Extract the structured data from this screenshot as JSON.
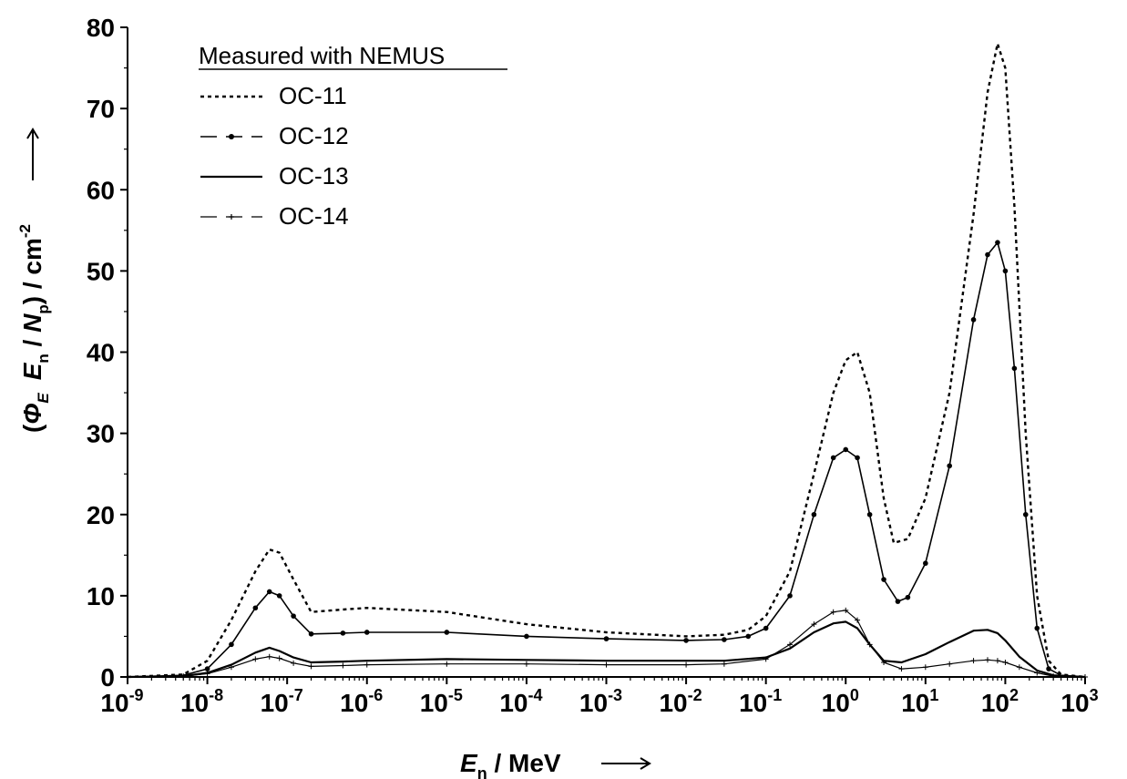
{
  "chart_data": {
    "type": "line",
    "x_scale": "log",
    "xlim": [
      1e-09,
      1000
    ],
    "ylim": [
      0,
      80
    ],
    "grid": false,
    "legend_position": "top-left",
    "legend_title": "Measured with NEMUS",
    "x_ticks": [
      {
        "base": "10",
        "exp": "-9",
        "value": 1e-09
      },
      {
        "base": "10",
        "exp": "-8",
        "value": 1e-08
      },
      {
        "base": "10",
        "exp": "-7",
        "value": 1e-07
      },
      {
        "base": "10",
        "exp": "-6",
        "value": 1e-06
      },
      {
        "base": "10",
        "exp": "-5",
        "value": 1e-05
      },
      {
        "base": "10",
        "exp": "-4",
        "value": 0.0001
      },
      {
        "base": "10",
        "exp": "-3",
        "value": 0.001
      },
      {
        "base": "10",
        "exp": "-2",
        "value": 0.01
      },
      {
        "base": "10",
        "exp": "-1",
        "value": 0.1
      },
      {
        "base": "10",
        "exp": "0",
        "value": 1
      },
      {
        "base": "10",
        "exp": "1",
        "value": 10
      },
      {
        "base": "10",
        "exp": "2",
        "value": 100
      },
      {
        "base": "10",
        "exp": "3",
        "value": 1000
      }
    ],
    "y_ticks": [
      0,
      10,
      20,
      30,
      40,
      50,
      60,
      70,
      80
    ],
    "xlabel": {
      "sym": "E",
      "sub": "n",
      "rest": " / MeV"
    },
    "ylabel": {
      "open": "(",
      "phi": "Φ",
      "phi_sub": "E",
      "e": "E",
      "e_sub": "n",
      "mid": " / ",
      "n": "N",
      "n_sub": "p",
      "close": ")  / cm",
      "sup": "-2"
    },
    "series": [
      {
        "name": "OC-11",
        "style": "dotted",
        "color": "#000000",
        "x": [
          1e-09,
          5e-09,
          1e-08,
          2e-08,
          4e-08,
          6e-08,
          8e-08,
          1.2e-07,
          2e-07,
          5e-07,
          1e-06,
          1e-05,
          0.0001,
          0.001,
          0.01,
          0.03,
          0.06,
          0.1,
          0.2,
          0.4,
          0.7,
          1.0,
          1.4,
          2.0,
          3.0,
          4.0,
          6.0,
          10,
          20,
          40,
          60,
          80,
          100,
          130,
          180,
          250,
          350,
          500,
          1000
        ],
        "y": [
          0,
          0.3,
          2,
          7,
          13,
          15.7,
          15.3,
          12,
          8,
          8.3,
          8.5,
          8,
          6.5,
          5.5,
          5,
          5.2,
          5.8,
          7.5,
          13,
          25,
          35,
          39,
          40,
          35,
          22,
          16.5,
          17,
          22,
          35,
          57,
          72,
          78,
          75,
          58,
          30,
          10,
          2,
          0.3,
          0
        ]
      },
      {
        "name": "OC-12",
        "style": "dash-dot",
        "color": "#000000",
        "x": [
          1e-09,
          5e-09,
          1e-08,
          2e-08,
          4e-08,
          6e-08,
          8e-08,
          1.2e-07,
          2e-07,
          5e-07,
          1e-06,
          1e-05,
          0.0001,
          0.001,
          0.01,
          0.03,
          0.06,
          0.1,
          0.2,
          0.4,
          0.7,
          1.0,
          1.4,
          2.0,
          3.0,
          4.5,
          6.0,
          10,
          20,
          40,
          60,
          80,
          100,
          130,
          180,
          250,
          350,
          500,
          1000
        ],
        "y": [
          0,
          0.2,
          1,
          4,
          8.5,
          10.5,
          10,
          7.5,
          5.3,
          5.4,
          5.5,
          5.5,
          5,
          4.7,
          4.5,
          4.6,
          5,
          6,
          10,
          20,
          27,
          28,
          27,
          20,
          12,
          9.3,
          9.8,
          14,
          26,
          44,
          52,
          53.5,
          50,
          38,
          20,
          6,
          1,
          0.2,
          0
        ]
      },
      {
        "name": "OC-13",
        "style": "solid",
        "color": "#000000",
        "x": [
          1e-09,
          5e-09,
          1e-08,
          2e-08,
          4e-08,
          6e-08,
          8e-08,
          1.2e-07,
          2e-07,
          5e-07,
          1e-06,
          1e-05,
          0.0001,
          0.001,
          0.01,
          0.03,
          0.1,
          0.2,
          0.4,
          0.7,
          1.0,
          1.4,
          2.0,
          3.0,
          5.0,
          10,
          20,
          40,
          60,
          80,
          100,
          150,
          250,
          400,
          1000
        ],
        "y": [
          0,
          0.1,
          0.5,
          1.5,
          3,
          3.6,
          3.2,
          2.4,
          1.8,
          1.9,
          2,
          2.2,
          2.1,
          2,
          2,
          2,
          2.4,
          3.5,
          5.5,
          6.6,
          6.8,
          6,
          4,
          2,
          1.8,
          2.8,
          4.3,
          5.7,
          5.8,
          5.4,
          4.5,
          2.5,
          0.8,
          0.2,
          0
        ]
      },
      {
        "name": "OC-14",
        "style": "dash-plus",
        "color": "#000000",
        "x": [
          1e-09,
          5e-09,
          1e-08,
          2e-08,
          4e-08,
          6e-08,
          8e-08,
          1.2e-07,
          2e-07,
          5e-07,
          1e-06,
          1e-05,
          0.0001,
          0.001,
          0.01,
          0.03,
          0.1,
          0.2,
          0.4,
          0.7,
          1.0,
          1.4,
          2.0,
          3.0,
          5.0,
          10,
          20,
          40,
          60,
          80,
          100,
          150,
          250,
          400,
          1000
        ],
        "y": [
          0,
          0.1,
          0.4,
          1.2,
          2.2,
          2.5,
          2.3,
          1.7,
          1.3,
          1.4,
          1.5,
          1.6,
          1.6,
          1.5,
          1.5,
          1.6,
          2.2,
          4,
          6.5,
          8,
          8.2,
          7,
          4,
          1.8,
          1,
          1.2,
          1.6,
          2,
          2.1,
          2,
          1.8,
          1.2,
          0.5,
          0.1,
          0
        ]
      }
    ]
  }
}
